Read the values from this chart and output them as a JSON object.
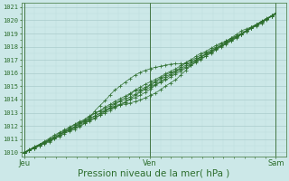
{
  "bg_color": "#cce8e8",
  "plot_bg_color": "#cce8e8",
  "grid_major_color": "#aacccc",
  "grid_minor_color": "#bbdddd",
  "line_color": "#2d6e2d",
  "xlabel": "Pression niveau de la mer( hPa )",
  "xlabel_fontsize": 7.5,
  "yticks": [
    1010,
    1011,
    1012,
    1013,
    1014,
    1015,
    1016,
    1017,
    1018,
    1019,
    1020,
    1021
  ],
  "ylim": [
    1009.7,
    1021.3
  ],
  "xtick_labels": [
    "Jeu",
    "Ven",
    "Sam"
  ],
  "xtick_positions": [
    0.0,
    0.5,
    1.0
  ],
  "vline_positions": [
    0.0,
    0.5,
    1.0
  ],
  "ytick_fontsize": 5.0,
  "xtick_fontsize": 6.0
}
